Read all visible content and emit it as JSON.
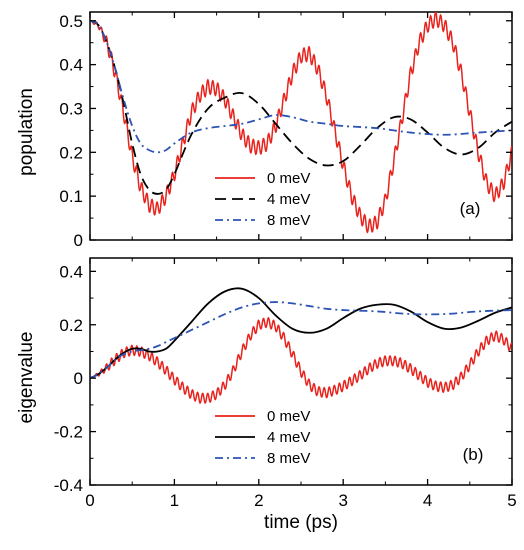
{
  "chart_data": [
    {
      "type": "line",
      "panel_label": "(a)",
      "xlabel": "",
      "ylabel": "population",
      "xlim": [
        0,
        5
      ],
      "ylim": [
        0,
        0.52
      ],
      "xticks": [
        0,
        1,
        2,
        3,
        4,
        5
      ],
      "xtick_labels": [
        "",
        "",
        "",
        "",
        "",
        ""
      ],
      "yticks": [
        0,
        0.1,
        0.2,
        0.3,
        0.4,
        0.5
      ],
      "ytick_labels": [
        "0",
        "0.1",
        "0.2",
        "0.3",
        "0.4",
        "0.5"
      ],
      "legend_position": "lower-center",
      "grid": false,
      "series": [
        {
          "name": "0 meV",
          "color": "#e8231d",
          "dash": "solid",
          "x": [
            0,
            0.1,
            0.2,
            0.3,
            0.4,
            0.5,
            0.6,
            0.7,
            0.8,
            0.9,
            1.0,
            1.1,
            1.2,
            1.3,
            1.4,
            1.5,
            1.6,
            1.7,
            1.8,
            1.9,
            2.0,
            2.1,
            2.2,
            2.3,
            2.4,
            2.5,
            2.6,
            2.7,
            2.8,
            2.9,
            3.0,
            3.1,
            3.2,
            3.3,
            3.4,
            3.5,
            3.6,
            3.7,
            3.8,
            3.9,
            4.0,
            4.1,
            4.2,
            4.3,
            4.4,
            4.5,
            4.6,
            4.7,
            4.8,
            4.9,
            5.0
          ],
          "y": [
            0.5,
            0.49,
            0.45,
            0.38,
            0.29,
            0.19,
            0.12,
            0.08,
            0.07,
            0.1,
            0.15,
            0.22,
            0.29,
            0.33,
            0.35,
            0.345,
            0.32,
            0.28,
            0.24,
            0.215,
            0.21,
            0.22,
            0.26,
            0.32,
            0.38,
            0.42,
            0.425,
            0.39,
            0.33,
            0.25,
            0.17,
            0.1,
            0.055,
            0.03,
            0.04,
            0.09,
            0.18,
            0.28,
            0.38,
            0.45,
            0.49,
            0.505,
            0.49,
            0.45,
            0.38,
            0.29,
            0.2,
            0.13,
            0.1,
            0.13,
            0.2
          ],
          "ripple_amplitude": 0.016,
          "ripple_period": 0.06
        },
        {
          "name": "4 meV",
          "color": "#000000",
          "dash": "dashed",
          "x": [
            0,
            0.1,
            0.2,
            0.3,
            0.4,
            0.5,
            0.6,
            0.7,
            0.8,
            0.9,
            1.0,
            1.2,
            1.4,
            1.6,
            1.8,
            2.0,
            2.2,
            2.4,
            2.6,
            2.8,
            3.0,
            3.2,
            3.4,
            3.6,
            3.8,
            4.0,
            4.2,
            4.4,
            4.6,
            4.8,
            5.0
          ],
          "y": [
            0.5,
            0.49,
            0.45,
            0.39,
            0.31,
            0.22,
            0.15,
            0.115,
            0.105,
            0.115,
            0.15,
            0.24,
            0.3,
            0.325,
            0.335,
            0.31,
            0.265,
            0.22,
            0.185,
            0.17,
            0.18,
            0.215,
            0.255,
            0.28,
            0.275,
            0.245,
            0.21,
            0.195,
            0.21,
            0.245,
            0.27
          ]
        },
        {
          "name": "8 meV",
          "color": "#2c54b5",
          "dash": "dashdot",
          "x": [
            0,
            0.1,
            0.2,
            0.3,
            0.4,
            0.5,
            0.6,
            0.7,
            0.8,
            0.9,
            1.0,
            1.2,
            1.4,
            1.6,
            1.8,
            2.0,
            2.2,
            2.4,
            2.6,
            2.8,
            3.0,
            3.4,
            3.8,
            4.2,
            4.6,
            5.0
          ],
          "y": [
            0.5,
            0.49,
            0.45,
            0.39,
            0.32,
            0.26,
            0.22,
            0.205,
            0.2,
            0.205,
            0.22,
            0.245,
            0.255,
            0.26,
            0.265,
            0.275,
            0.285,
            0.28,
            0.27,
            0.265,
            0.26,
            0.255,
            0.245,
            0.24,
            0.245,
            0.25
          ]
        }
      ]
    },
    {
      "type": "line",
      "panel_label": "(b)",
      "xlabel": "time (ps)",
      "ylabel": "eigenvalue",
      "xlim": [
        0,
        5
      ],
      "ylim": [
        -0.4,
        0.45
      ],
      "xticks": [
        0,
        1,
        2,
        3,
        4,
        5
      ],
      "xtick_labels": [
        "0",
        "1",
        "2",
        "3",
        "4",
        "5"
      ],
      "yticks": [
        -0.4,
        -0.2,
        0,
        0.2,
        0.4
      ],
      "ytick_labels": [
        "-0.4",
        "-0.2",
        "0",
        "0.2",
        "0.4"
      ],
      "legend_position": "lower-center",
      "grid": false,
      "series": [
        {
          "name": "0 meV",
          "color": "#e8231d",
          "dash": "solid",
          "x": [
            0,
            0.1,
            0.2,
            0.3,
            0.4,
            0.5,
            0.6,
            0.7,
            0.8,
            0.9,
            1.0,
            1.1,
            1.2,
            1.3,
            1.4,
            1.5,
            1.6,
            1.7,
            1.8,
            1.9,
            2.0,
            2.1,
            2.2,
            2.3,
            2.4,
            2.5,
            2.6,
            2.7,
            2.8,
            2.9,
            3.0,
            3.1,
            3.2,
            3.3,
            3.4,
            3.5,
            3.6,
            3.7,
            3.8,
            3.9,
            4.0,
            4.1,
            4.2,
            4.3,
            4.4,
            4.5,
            4.6,
            4.7,
            4.8,
            4.9,
            5.0
          ],
          "y": [
            0,
            0.015,
            0.04,
            0.07,
            0.095,
            0.105,
            0.1,
            0.085,
            0.06,
            0.03,
            -0.005,
            -0.035,
            -0.06,
            -0.075,
            -0.075,
            -0.06,
            -0.025,
            0.03,
            0.1,
            0.16,
            0.2,
            0.21,
            0.195,
            0.15,
            0.09,
            0.025,
            -0.025,
            -0.05,
            -0.055,
            -0.045,
            -0.03,
            -0.01,
            0.01,
            0.035,
            0.055,
            0.065,
            0.065,
            0.055,
            0.035,
            0.01,
            -0.015,
            -0.03,
            -0.035,
            -0.025,
            0.005,
            0.05,
            0.1,
            0.14,
            0.16,
            0.145,
            0.11
          ],
          "ripple_amplitude": 0.018,
          "ripple_period": 0.06
        },
        {
          "name": "4 meV",
          "color": "#000000",
          "dash": "solid",
          "x": [
            0,
            0.1,
            0.2,
            0.3,
            0.4,
            0.5,
            0.6,
            0.7,
            0.8,
            0.9,
            1.0,
            1.2,
            1.4,
            1.6,
            1.8,
            2.0,
            2.2,
            2.4,
            2.6,
            2.8,
            3.0,
            3.2,
            3.4,
            3.6,
            3.8,
            4.0,
            4.2,
            4.4,
            4.6,
            4.8,
            5.0
          ],
          "y": [
            0,
            0.015,
            0.04,
            0.07,
            0.095,
            0.11,
            0.11,
            0.1,
            0.1,
            0.11,
            0.14,
            0.21,
            0.28,
            0.325,
            0.335,
            0.3,
            0.235,
            0.185,
            0.17,
            0.185,
            0.225,
            0.26,
            0.275,
            0.275,
            0.25,
            0.21,
            0.185,
            0.19,
            0.215,
            0.245,
            0.265
          ]
        },
        {
          "name": "8 meV",
          "color": "#2c54b5",
          "dash": "dashdot",
          "x": [
            0,
            0.1,
            0.2,
            0.3,
            0.4,
            0.5,
            0.6,
            0.7,
            0.8,
            0.9,
            1.0,
            1.2,
            1.4,
            1.6,
            1.8,
            2.0,
            2.2,
            2.4,
            2.6,
            2.8,
            3.0,
            3.4,
            3.8,
            4.2,
            4.6,
            5.0
          ],
          "y": [
            0,
            0.015,
            0.04,
            0.07,
            0.09,
            0.1,
            0.105,
            0.11,
            0.12,
            0.135,
            0.15,
            0.18,
            0.21,
            0.24,
            0.265,
            0.28,
            0.285,
            0.28,
            0.27,
            0.26,
            0.255,
            0.25,
            0.24,
            0.24,
            0.25,
            0.255
          ]
        }
      ]
    }
  ]
}
